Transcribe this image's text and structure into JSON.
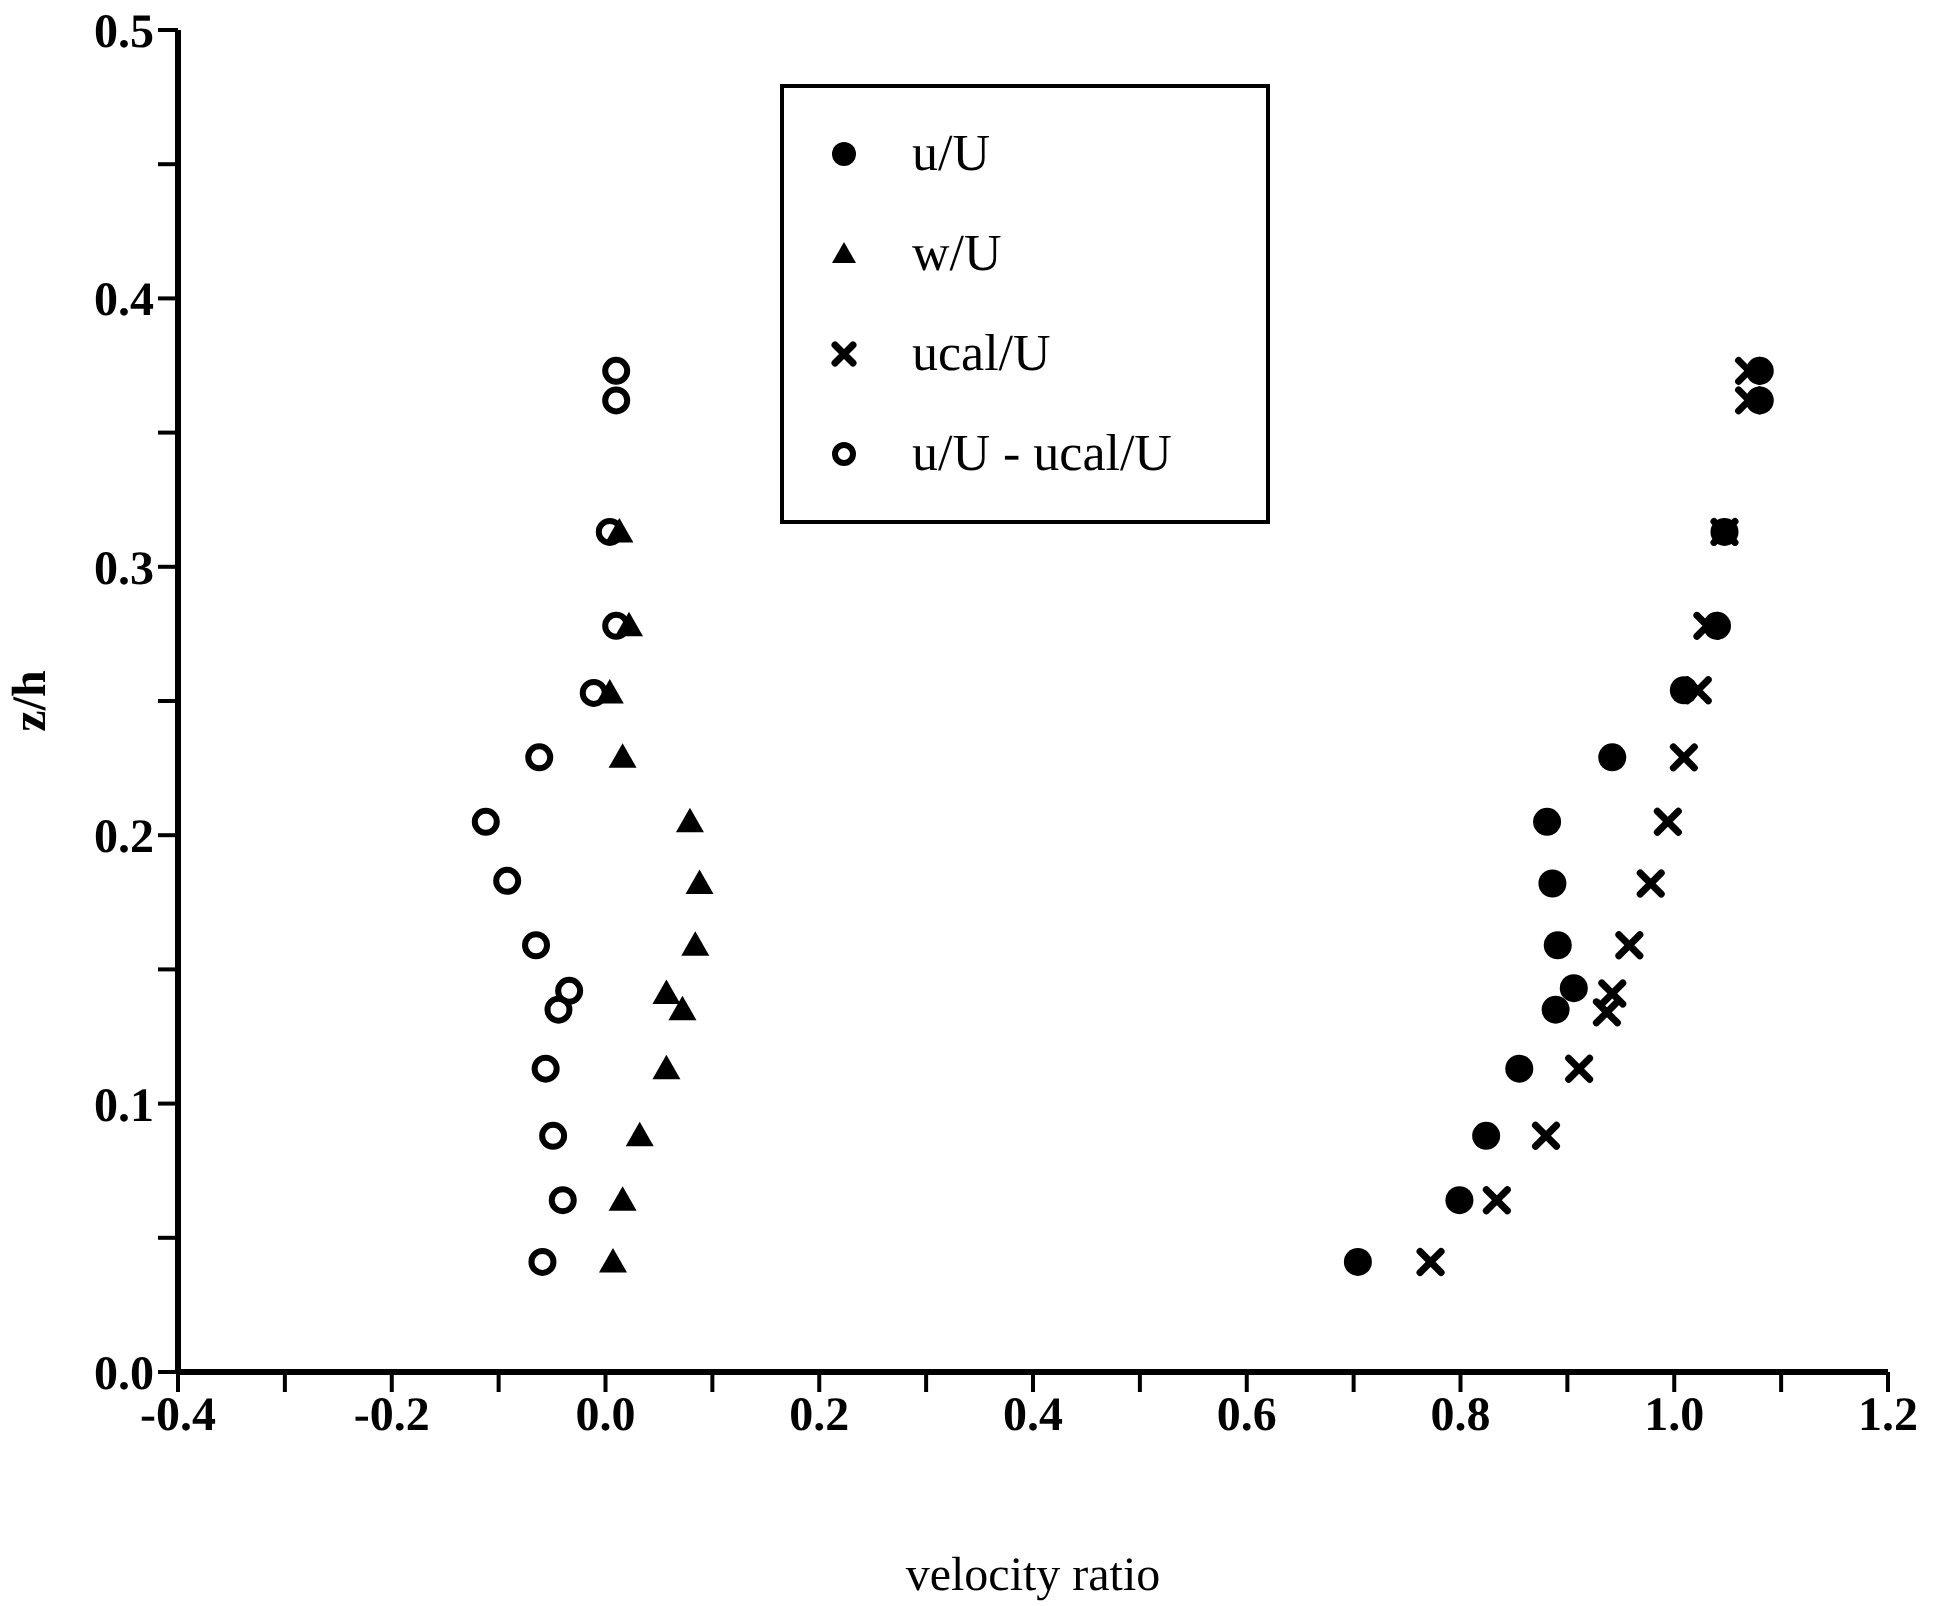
{
  "chart_data": {
    "type": "scatter",
    "xlabel": "velocity ratio",
    "ylabel": "z/h",
    "xlim": [
      -0.4,
      1.2
    ],
    "ylim": [
      0.0,
      0.5
    ],
    "xticks": [
      -0.4,
      {
        "value": -0.3,
        "label": null
      },
      -0.2,
      {
        "value": -0.1,
        "label": null
      },
      {
        "value": 0,
        "label": "0.0"
      },
      {
        "value": 0.1,
        "label": null
      },
      0.2,
      {
        "value": 0.3,
        "label": null
      },
      0.4,
      {
        "value": 0.5,
        "label": null
      },
      0.6,
      {
        "value": 0.7,
        "label": null
      },
      0.8,
      {
        "value": 0.9,
        "label": null
      },
      {
        "value": 1,
        "label": "1.0"
      },
      {
        "value": 1.1,
        "label": null
      },
      1.2
    ],
    "yticks": [
      {
        "value": 0,
        "label": "0.0"
      },
      {
        "value": 0.05,
        "label": null
      },
      0.1,
      {
        "value": 0.15,
        "label": null
      },
      0.2,
      {
        "value": 0.25,
        "label": null
      },
      0.3,
      {
        "value": 0.35,
        "label": null
      },
      0.4,
      {
        "value": 0.45,
        "label": null
      },
      0.5
    ],
    "legend": "top",
    "grid": false,
    "series": [
      {
        "name": "u/U",
        "color": "#000000",
        "marker": "circle",
        "x": [
          0.704,
          0.799,
          0.824,
          0.855,
          0.889,
          0.906,
          0.891,
          0.886,
          0.881,
          0.942,
          1.009,
          1.04,
          1.047,
          1.08,
          1.08
        ],
        "values": [
          0.041,
          0.064,
          0.088,
          0.113,
          0.135,
          0.143,
          0.159,
          0.182,
          0.205,
          0.229,
          0.254,
          0.278,
          0.313,
          0.362,
          0.373
        ]
      },
      {
        "name": "w/U",
        "color": "#000000",
        "marker": "triangle",
        "x": [
          0.007,
          0.016,
          0.032,
          0.057,
          0.072,
          0.057,
          0.084,
          0.088,
          0.079,
          0.016,
          0.004,
          0.022,
          0.013
        ],
        "values": [
          0.041,
          0.064,
          0.088,
          0.113,
          0.135,
          0.141,
          0.159,
          0.182,
          0.205,
          0.229,
          0.253,
          0.278,
          0.313
        ]
      },
      {
        "name": "ucal/U",
        "color": "#000000",
        "marker": "cross",
        "x": [
          0.772,
          0.834,
          0.88,
          0.911,
          0.937,
          0.942,
          0.958,
          0.978,
          0.994,
          1.009,
          1.022,
          1.031,
          1.047,
          1.07,
          1.07
        ],
        "values": [
          0.041,
          0.064,
          0.088,
          0.113,
          0.134,
          0.141,
          0.159,
          0.182,
          0.205,
          0.229,
          0.254,
          0.278,
          0.313,
          0.362,
          0.373
        ]
      },
      {
        "name": "u/U - ucal/U",
        "color": "#000000",
        "marker": "circle",
        "x": [
          -0.059,
          -0.04,
          -0.049,
          -0.056,
          -0.044,
          -0.034,
          -0.065,
          -0.092,
          -0.112,
          -0.062,
          -0.011,
          0.01,
          0.004,
          0.01,
          0.01
        ],
        "values": [
          0.041,
          0.064,
          0.088,
          0.113,
          0.135,
          0.142,
          0.159,
          0.183,
          0.205,
          0.229,
          0.253,
          0.278,
          0.313,
          0.362,
          0.373
        ]
      }
    ]
  }
}
